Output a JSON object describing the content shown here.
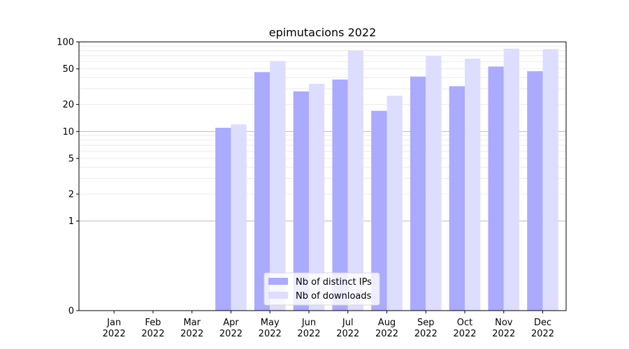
{
  "chart_data": {
    "type": "bar",
    "title": "epimutacions 2022",
    "xlabel": "",
    "ylabel": "",
    "yscale": "symlog",
    "ylim": [
      0,
      100
    ],
    "yticks": [
      0,
      1,
      2,
      5,
      10,
      20,
      50,
      100
    ],
    "grid": true,
    "legend_position": "bottom-center",
    "categories": [
      {
        "month": "Jan",
        "year": "2022"
      },
      {
        "month": "Feb",
        "year": "2022"
      },
      {
        "month": "Mar",
        "year": "2022"
      },
      {
        "month": "Apr",
        "year": "2022"
      },
      {
        "month": "May",
        "year": "2022"
      },
      {
        "month": "Jun",
        "year": "2022"
      },
      {
        "month": "Jul",
        "year": "2022"
      },
      {
        "month": "Aug",
        "year": "2022"
      },
      {
        "month": "Sep",
        "year": "2022"
      },
      {
        "month": "Oct",
        "year": "2022"
      },
      {
        "month": "Nov",
        "year": "2022"
      },
      {
        "month": "Dec",
        "year": "2022"
      }
    ],
    "series": [
      {
        "name": "Nb of distinct IPs",
        "color": "#aaaaff",
        "values": [
          0,
          0,
          0,
          11,
          46,
          28,
          38,
          17,
          41,
          32,
          53,
          47
        ]
      },
      {
        "name": "Nb of downloads",
        "color": "#ddddff",
        "values": [
          0,
          0,
          0,
          12,
          61,
          34,
          80,
          25,
          70,
          65,
          84,
          83
        ]
      }
    ]
  }
}
